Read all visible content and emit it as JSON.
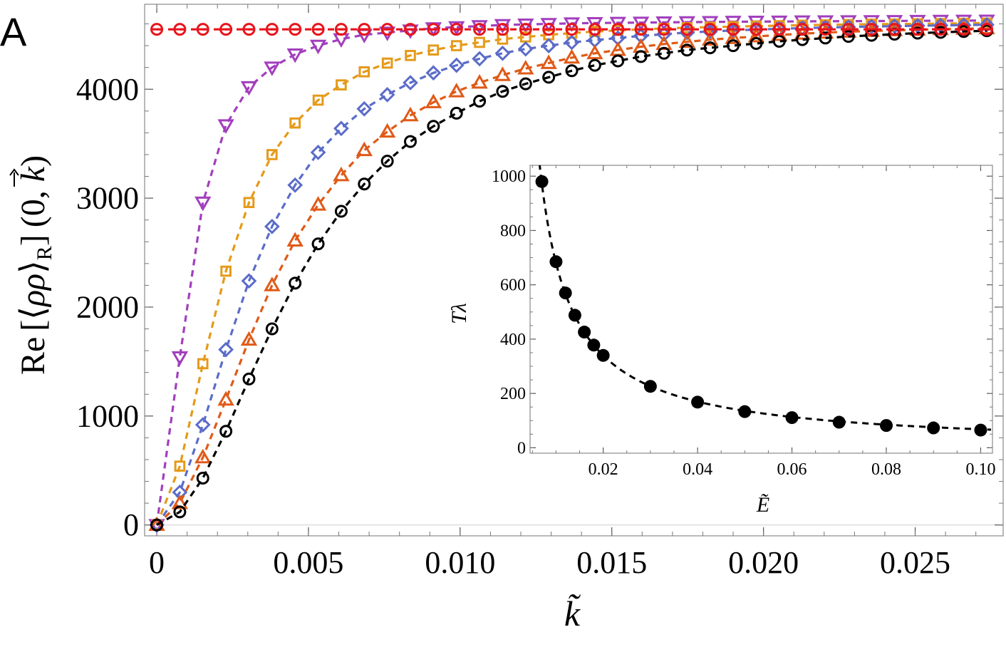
{
  "panel_label": "A",
  "chart_data": [
    {
      "type": "line",
      "name": "main",
      "xlabel": "k̃",
      "ylabel": "Re[⟨ρρ⟩R](0, k⃗)",
      "ylabel_parts": {
        "re": "Re",
        "bracket_open": "[",
        "angle_open": "⟨",
        "rho": "ρρ",
        "angle_close": "⟩",
        "sub": "R",
        "bracket_close": "]",
        "args": "(0, ",
        "k": "k",
        "close_paren": ")"
      },
      "xlim": [
        -0.0004,
        0.0279
      ],
      "ylim": [
        -100,
        4780
      ],
      "xticks": [
        0,
        0.005,
        0.01,
        0.015,
        0.02,
        0.025
      ],
      "xtick_labels": [
        "0",
        "0.005",
        "0.010",
        "0.015",
        "0.020",
        "0.025"
      ],
      "yticks": [
        0,
        1000,
        2000,
        3000,
        4000
      ],
      "ytick_labels": [
        "0",
        "1000",
        "2000",
        "3000",
        "4000"
      ],
      "reference_line": 4550,
      "series": [
        {
          "name": "purple",
          "color": "#a23fbd",
          "marker": "triangle-down",
          "x": [
            0,
            0.00076,
            0.00152,
            0.00228,
            0.00304,
            0.0038,
            0.00456,
            0.00532,
            0.00608,
            0.00684,
            0.0076,
            0.00836,
            0.00912,
            0.00988,
            0.01064,
            0.0114,
            0.01216,
            0.01292,
            0.01368,
            0.01444,
            0.0152,
            0.01596,
            0.01672,
            0.01748,
            0.01824,
            0.019,
            0.01976,
            0.02052,
            0.02128,
            0.02204,
            0.0228,
            0.02356,
            0.02432,
            0.02508,
            0.02584,
            0.0266,
            0.02736
          ],
          "y": [
            0,
            1540,
            2960,
            3670,
            4020,
            4200,
            4320,
            4400,
            4460,
            4500,
            4520,
            4540,
            4560,
            4570,
            4580,
            4590,
            4595,
            4600,
            4605,
            4608,
            4610,
            4612,
            4614,
            4616,
            4618,
            4620,
            4621,
            4622,
            4623,
            4624,
            4625,
            4626,
            4627,
            4628,
            4629,
            4630,
            4631
          ]
        },
        {
          "name": "orange",
          "color": "#e59a19",
          "marker": "square",
          "x": [
            0,
            0.00076,
            0.00152,
            0.00228,
            0.00304,
            0.0038,
            0.00456,
            0.00532,
            0.00608,
            0.00684,
            0.0076,
            0.00836,
            0.00912,
            0.00988,
            0.01064,
            0.0114,
            0.01216,
            0.01292,
            0.01368,
            0.01444,
            0.0152,
            0.01596,
            0.01672,
            0.01748,
            0.01824,
            0.019,
            0.01976,
            0.02052,
            0.02128,
            0.02204,
            0.0228,
            0.02356,
            0.02432,
            0.02508,
            0.02584,
            0.0266,
            0.02736
          ],
          "y": [
            0,
            540,
            1480,
            2330,
            2960,
            3400,
            3690,
            3900,
            4040,
            4160,
            4240,
            4310,
            4360,
            4400,
            4430,
            4460,
            4480,
            4500,
            4515,
            4530,
            4540,
            4550,
            4558,
            4565,
            4570,
            4575,
            4580,
            4584,
            4588,
            4591,
            4594,
            4597,
            4599,
            4601,
            4603,
            4605,
            4607
          ]
        },
        {
          "name": "blue",
          "color": "#5b6cc8",
          "marker": "diamond",
          "x": [
            0,
            0.00076,
            0.00152,
            0.00228,
            0.00304,
            0.0038,
            0.00456,
            0.00532,
            0.00608,
            0.00684,
            0.0076,
            0.00836,
            0.00912,
            0.00988,
            0.01064,
            0.0114,
            0.01216,
            0.01292,
            0.01368,
            0.01444,
            0.0152,
            0.01596,
            0.01672,
            0.01748,
            0.01824,
            0.019,
            0.01976,
            0.02052,
            0.02128,
            0.02204,
            0.0228,
            0.02356,
            0.02432,
            0.02508,
            0.02584,
            0.0266,
            0.02736
          ],
          "y": [
            0,
            300,
            920,
            1610,
            2240,
            2740,
            3120,
            3420,
            3640,
            3820,
            3950,
            4060,
            4150,
            4220,
            4280,
            4330,
            4370,
            4400,
            4430,
            4450,
            4470,
            4490,
            4505,
            4520,
            4530,
            4540,
            4548,
            4555,
            4561,
            4566,
            4571,
            4575,
            4579,
            4583,
            4586,
            4589,
            4592
          ]
        },
        {
          "name": "red-orange",
          "color": "#e05a18",
          "marker": "triangle-up",
          "x": [
            0,
            0.00076,
            0.00152,
            0.00228,
            0.00304,
            0.0038,
            0.00456,
            0.00532,
            0.00608,
            0.00684,
            0.0076,
            0.00836,
            0.00912,
            0.00988,
            0.01064,
            0.0114,
            0.01216,
            0.01292,
            0.01368,
            0.01444,
            0.0152,
            0.01596,
            0.01672,
            0.01748,
            0.01824,
            0.019,
            0.01976,
            0.02052,
            0.02128,
            0.02204,
            0.0228,
            0.02356,
            0.02432,
            0.02508,
            0.02584,
            0.0266,
            0.02736
          ],
          "y": [
            0,
            200,
            620,
            1150,
            1700,
            2200,
            2610,
            2940,
            3210,
            3440,
            3610,
            3760,
            3880,
            3980,
            4060,
            4130,
            4190,
            4240,
            4290,
            4330,
            4360,
            4390,
            4415,
            4435,
            4455,
            4470,
            4485,
            4498,
            4510,
            4520,
            4528,
            4535,
            4541,
            4546,
            4551,
            4555,
            4559
          ]
        },
        {
          "name": "black",
          "color": "#000000",
          "marker": "circle",
          "x": [
            0,
            0.00076,
            0.00152,
            0.00228,
            0.00304,
            0.0038,
            0.00456,
            0.00532,
            0.00608,
            0.00684,
            0.0076,
            0.00836,
            0.00912,
            0.00988,
            0.01064,
            0.0114,
            0.01216,
            0.01292,
            0.01368,
            0.01444,
            0.0152,
            0.01596,
            0.01672,
            0.01748,
            0.01824,
            0.019,
            0.01976,
            0.02052,
            0.02128,
            0.02204,
            0.0228,
            0.02356,
            0.02432,
            0.02508,
            0.02584,
            0.0266,
            0.02736
          ],
          "y": [
            0,
            120,
            430,
            860,
            1340,
            1800,
            2220,
            2580,
            2880,
            3130,
            3340,
            3520,
            3660,
            3780,
            3890,
            3980,
            4050,
            4110,
            4170,
            4220,
            4260,
            4300,
            4330,
            4360,
            4380,
            4400,
            4420,
            4440,
            4455,
            4470,
            4485,
            4495,
            4505,
            4515,
            4522,
            4530,
            4537
          ]
        },
        {
          "name": "red-reference",
          "color": "#e8141c",
          "marker": "circle-bar",
          "x": [
            0,
            0.00076,
            0.00152,
            0.00228,
            0.00304,
            0.0038,
            0.00456,
            0.00532,
            0.00608,
            0.00684,
            0.0076,
            0.00836,
            0.00912,
            0.00988,
            0.01064,
            0.0114,
            0.01216,
            0.01292,
            0.01368,
            0.01444,
            0.0152,
            0.01596,
            0.01672,
            0.01748,
            0.01824,
            0.019,
            0.01976,
            0.02052,
            0.02128,
            0.02204,
            0.0228,
            0.02356,
            0.02432,
            0.02508,
            0.02584,
            0.0266,
            0.02736
          ],
          "y": [
            4550,
            4550,
            4550,
            4550,
            4550,
            4550,
            4550,
            4550,
            4550,
            4550,
            4550,
            4550,
            4550,
            4550,
            4550,
            4550,
            4550,
            4550,
            4550,
            4550,
            4550,
            4550,
            4550,
            4550,
            4550,
            4550,
            4550,
            4550,
            4550,
            4550,
            4550,
            4550,
            4550,
            4550,
            4550,
            4550,
            4550
          ]
        }
      ]
    },
    {
      "type": "scatter",
      "name": "inset",
      "xlabel": "Ẽ",
      "ylabel": "Tλ",
      "xlim": [
        0.0045,
        0.1025
      ],
      "ylim": [
        -20,
        1040
      ],
      "xticks": [
        0.02,
        0.04,
        0.06,
        0.08,
        0.1
      ],
      "xtick_labels": [
        "0.02",
        "0.04",
        "0.06",
        "0.08",
        "0.10"
      ],
      "yticks": [
        0,
        200,
        400,
        600,
        800,
        1000
      ],
      "ytick_labels": [
        "0",
        "200",
        "400",
        "600",
        "800",
        "1000"
      ],
      "points": {
        "x": [
          0.007,
          0.01,
          0.012,
          0.014,
          0.016,
          0.018,
          0.02,
          0.03,
          0.04,
          0.05,
          0.06,
          0.07,
          0.08,
          0.09,
          0.1
        ],
        "y": [
          980,
          685,
          570,
          488,
          426,
          378,
          340,
          226,
          168,
          133,
          111,
          94,
          82,
          73,
          65
        ]
      },
      "fit": {
        "form": "a/E",
        "a": 6.8
      }
    }
  ]
}
